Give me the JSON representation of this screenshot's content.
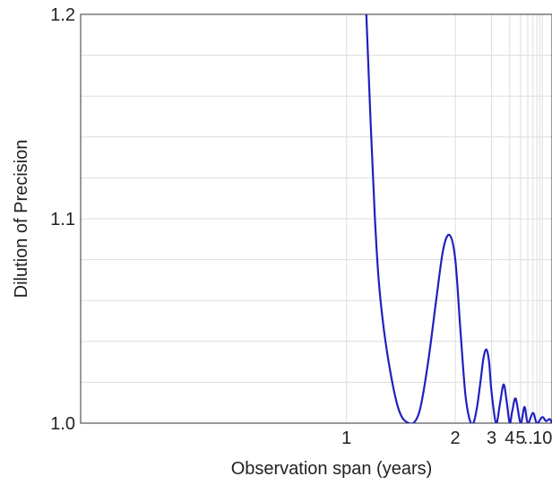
{
  "chart_data": {
    "type": "line",
    "title": "",
    "xlabel": "Observation span (years)",
    "ylabel": "Dilution of Precision",
    "xscale": "reciprocal",
    "xlim": [
      0.45,
      18
    ],
    "ylim": [
      1.0,
      1.2
    ],
    "x_tick_labels": [
      "1",
      "2",
      "3",
      "4",
      "5",
      "...",
      "10"
    ],
    "y_tick_labels": [
      "1.0",
      "1.1",
      "1.2"
    ],
    "grid": true,
    "series": [
      {
        "color": "#2020c0",
        "x": [
          1.1,
          1.15,
          1.2,
          1.3,
          1.4,
          1.5,
          1.6,
          1.7,
          1.8,
          1.9,
          2.0,
          2.1,
          2.2,
          2.3,
          2.4,
          2.5,
          2.6,
          2.7,
          2.8,
          2.9,
          3.0,
          3.2,
          3.4,
          3.6,
          3.8,
          4.0,
          4.2,
          4.5,
          5.0,
          5.5,
          6.0,
          7.0,
          8.0,
          10.0,
          12.0,
          15.0,
          18.0
        ],
        "y": [
          1.2,
          1.1,
          1.05,
          1.01,
          1.0,
          1.005,
          1.03,
          1.06,
          1.085,
          1.092,
          1.08,
          1.045,
          1.015,
          1.002,
          1.0,
          1.008,
          1.02,
          1.032,
          1.036,
          1.03,
          1.015,
          1.0,
          1.01,
          1.019,
          1.01,
          1.0,
          1.006,
          1.012,
          1.0,
          1.008,
          1.0,
          1.005,
          1.0,
          1.003,
          1.001,
          1.002,
          1.0
        ]
      }
    ]
  }
}
